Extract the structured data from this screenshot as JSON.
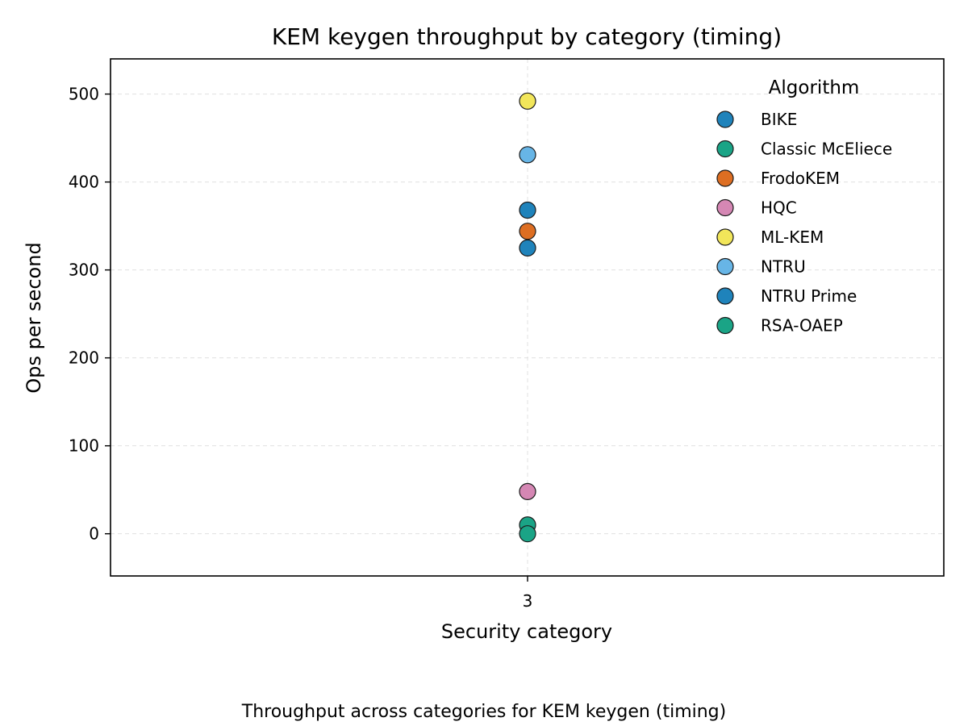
{
  "caption": "Throughput across categories for KEM keygen (timing)",
  "chart_data": {
    "type": "scatter",
    "title": "KEM keygen throughput by category (timing)",
    "xlabel": "Security category",
    "ylabel": "Ops per second",
    "categories": [
      "3"
    ],
    "ylim": [
      -48,
      540
    ],
    "yticks": [
      0,
      100,
      200,
      300,
      400,
      500
    ],
    "grid": true,
    "legend": {
      "title": "Algorithm",
      "position": "top-right"
    },
    "series": [
      {
        "name": "BIKE",
        "color": "#1f83bb",
        "points": [
          {
            "x": "3",
            "y": 325
          }
        ]
      },
      {
        "name": "Classic McEliece",
        "color": "#1aa486",
        "points": [
          {
            "x": "3",
            "y": 10
          }
        ]
      },
      {
        "name": "FrodoKEM",
        "color": "#dd6e22",
        "points": [
          {
            "x": "3",
            "y": 344
          }
        ]
      },
      {
        "name": "HQC",
        "color": "#d587b4",
        "points": [
          {
            "x": "3",
            "y": 48
          }
        ]
      },
      {
        "name": "ML-KEM",
        "color": "#f2e65a",
        "points": [
          {
            "x": "3",
            "y": 492
          }
        ]
      },
      {
        "name": "NTRU",
        "color": "#67b5e6",
        "points": [
          {
            "x": "3",
            "y": 431
          }
        ]
      },
      {
        "name": "NTRU Prime",
        "color": "#1f83bb",
        "points": [
          {
            "x": "3",
            "y": 368
          }
        ]
      },
      {
        "name": "RSA-OAEP",
        "color": "#1aa486",
        "points": [
          {
            "x": "3",
            "y": 0
          }
        ]
      }
    ]
  }
}
